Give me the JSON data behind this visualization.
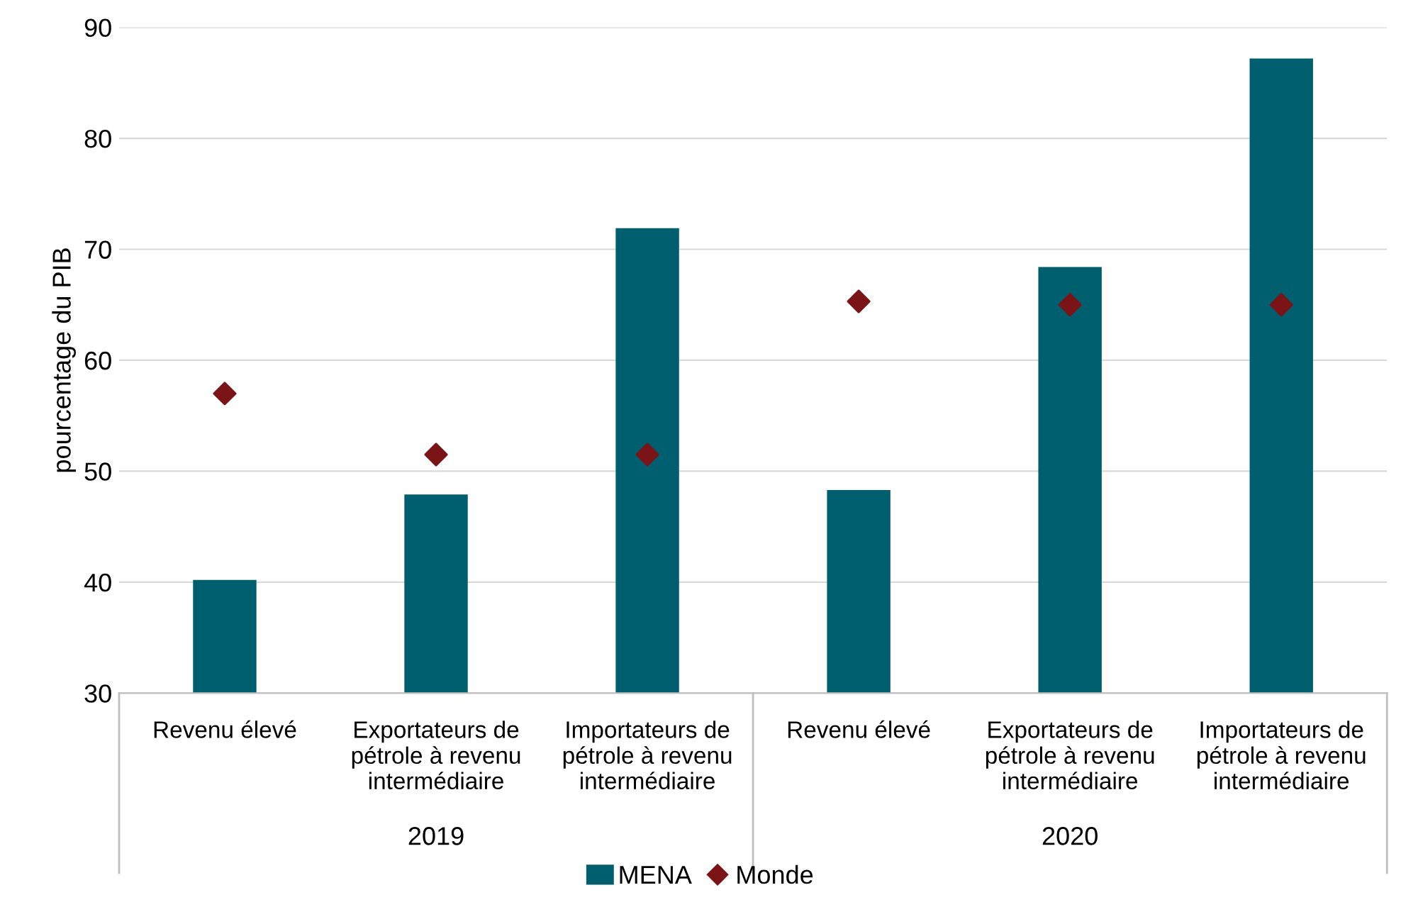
{
  "chart_data": {
    "type": "bar",
    "ylabel": "pourcentage du PIB",
    "categories": [
      "Revenu élevé",
      "Exportateurs de\npétrole à revenu\nintermédiaire",
      "Importateurs de\npétrole à revenu\nintermédiaire",
      "Revenu élevé",
      "Exportateurs de\npétrole à revenu\nintermédiaire",
      "Importateurs de\npétrole à revenu\nintermédiaire"
    ],
    "series": [
      {
        "name": "MENA",
        "color": "#005f6e",
        "values": [
          40.2,
          47.9,
          71.9,
          48.3,
          68.4,
          87.2
        ]
      },
      {
        "name": "Monde",
        "type": "scatter",
        "color": "#7b1416",
        "marker": "diamond",
        "values": [
          57.0,
          51.5,
          51.5,
          65.3,
          65.0,
          65.0
        ]
      }
    ],
    "annotations": [
      "2019",
      "2020"
    ],
    "ylim": [
      30,
      90
    ],
    "yticks": [
      30,
      40,
      50,
      60,
      70,
      80,
      90
    ],
    "grid": "y",
    "legend": "bottom"
  }
}
